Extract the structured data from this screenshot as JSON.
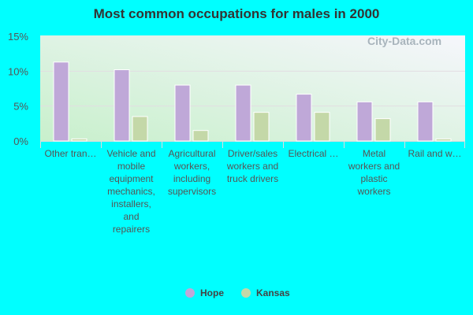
{
  "chart_data": {
    "type": "bar",
    "title": "Most common occupations for males in 2000",
    "xlabel": "",
    "ylabel": "",
    "ylim": [
      0,
      15
    ],
    "yticks": [
      "0%",
      "5%",
      "10%",
      "15%"
    ],
    "ytick_values": [
      0,
      5,
      10,
      15
    ],
    "categories": [
      "Other tran…",
      "Vehicle and mobile equipment mechanics, installers, and repairers",
      "Agricultural workers, including supervisors",
      "Driver/sales workers and truck drivers",
      "Electrical …",
      "Metal workers and plastic workers",
      "Rail and w…"
    ],
    "series": [
      {
        "name": "Hope",
        "color": "#bfa8d8",
        "values": [
          11.3,
          10.2,
          8.0,
          8.0,
          6.7,
          5.6,
          5.6
        ]
      },
      {
        "name": "Kansas",
        "color": "#c4d8a8",
        "values": [
          0.3,
          3.5,
          1.5,
          4.1,
          4.1,
          3.2,
          0.3
        ]
      }
    ],
    "grid": true,
    "legend": "bottom"
  },
  "watermark": "City-Data.com"
}
